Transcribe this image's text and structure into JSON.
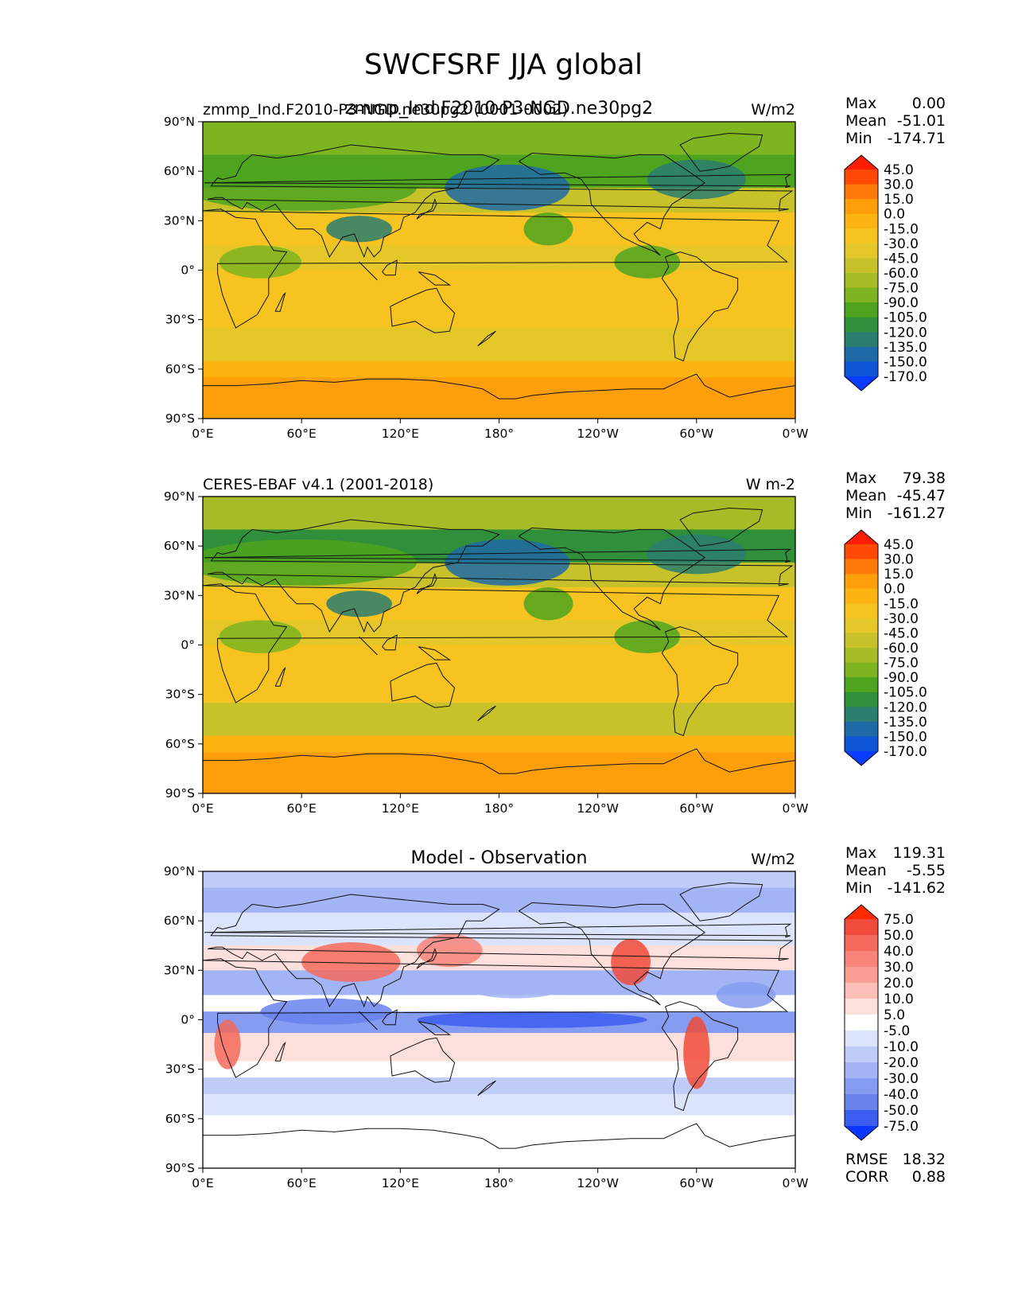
{
  "figure": {
    "title": "SWCFSRF JJA global",
    "xticks": [
      "0°E",
      "60°E",
      "120°E",
      "180°",
      "120°W",
      "60°W",
      "0°W"
    ],
    "yticks": [
      "90°N",
      "60°N",
      "30°N",
      "0°",
      "30°S",
      "60°S",
      "90°S"
    ]
  },
  "panels": [
    {
      "center_title": "zmmp_Ind.F2010-P3-NGD.ne30pg2",
      "left_title": "zmmp_Ind.F2010-P3-NGD.ne30pg2 (0001-0002)",
      "units": "W/m2",
      "stats": [
        {
          "label": "Max",
          "value": "0.00"
        },
        {
          "label": "Mean",
          "value": "-51.01"
        },
        {
          "label": "Min",
          "value": "-174.71"
        }
      ],
      "colorbar": {
        "labels": [
          "45.0",
          "30.0",
          "15.0",
          "0.0",
          "-15.0",
          "-30.0",
          "-45.0",
          "-60.0",
          "-75.0",
          "-90.0",
          "-105.0",
          "-120.0",
          "-135.0",
          "-150.0",
          "-170.0"
        ],
        "colors": [
          "#ff1e05",
          "#ff4a06",
          "#ff7a0a",
          "#ff9e0b",
          "#fdb412",
          "#f6c320",
          "#e6c72a",
          "#c8c22a",
          "#a6bc26",
          "#7db420",
          "#4ea41e",
          "#2f8f3a",
          "#2a7e6e",
          "#1e6aa6",
          "#0d54d6",
          "#0a3cff"
        ]
      }
    },
    {
      "center_title": "",
      "left_title": "CERES-EBAF v4.1 (2001-2018)",
      "units": "W m-2",
      "stats": [
        {
          "label": "Max",
          "value": "79.38"
        },
        {
          "label": "Mean",
          "value": "-45.47"
        },
        {
          "label": "Min",
          "value": "-161.27"
        }
      ],
      "colorbar": {
        "labels": [
          "45.0",
          "30.0",
          "15.0",
          "0.0",
          "-15.0",
          "-30.0",
          "-45.0",
          "-60.0",
          "-75.0",
          "-90.0",
          "-105.0",
          "-120.0",
          "-135.0",
          "-150.0",
          "-170.0"
        ],
        "colors": [
          "#ff1e05",
          "#ff4a06",
          "#ff7a0a",
          "#ff9e0b",
          "#fdb412",
          "#f6c320",
          "#e6c72a",
          "#c8c22a",
          "#a6bc26",
          "#7db420",
          "#4ea41e",
          "#2f8f3a",
          "#2a7e6e",
          "#1e6aa6",
          "#0d54d6",
          "#0a3cff"
        ]
      }
    },
    {
      "center_title": "Model - Observation",
      "left_title": "",
      "units": "W/m2",
      "stats": [
        {
          "label": "Max",
          "value": "119.31"
        },
        {
          "label": "Mean",
          "value": "-5.55"
        },
        {
          "label": "Min",
          "value": "-141.62"
        }
      ],
      "extra_stats": [
        {
          "label": "RMSE",
          "value": "18.32"
        },
        {
          "label": "CORR",
          "value": "0.88"
        }
      ],
      "colorbar": {
        "labels": [
          "75.0",
          "50.0",
          "40.0",
          "30.0",
          "20.0",
          "10.0",
          "5.0",
          "-5.0",
          "-10.0",
          "-20.0",
          "-30.0",
          "-40.0",
          "-50.0",
          "-75.0"
        ],
        "colors": [
          "#ff2a00",
          "#f04a3a",
          "#f56a5c",
          "#f8857a",
          "#fa9f96",
          "#fcc0b8",
          "#fde0dc",
          "#ffffff",
          "#dce4fb",
          "#c0ccf8",
          "#a3b4f4",
          "#869cf0",
          "#6883ec",
          "#3c5ef0",
          "#0a37ff"
        ]
      }
    }
  ]
}
